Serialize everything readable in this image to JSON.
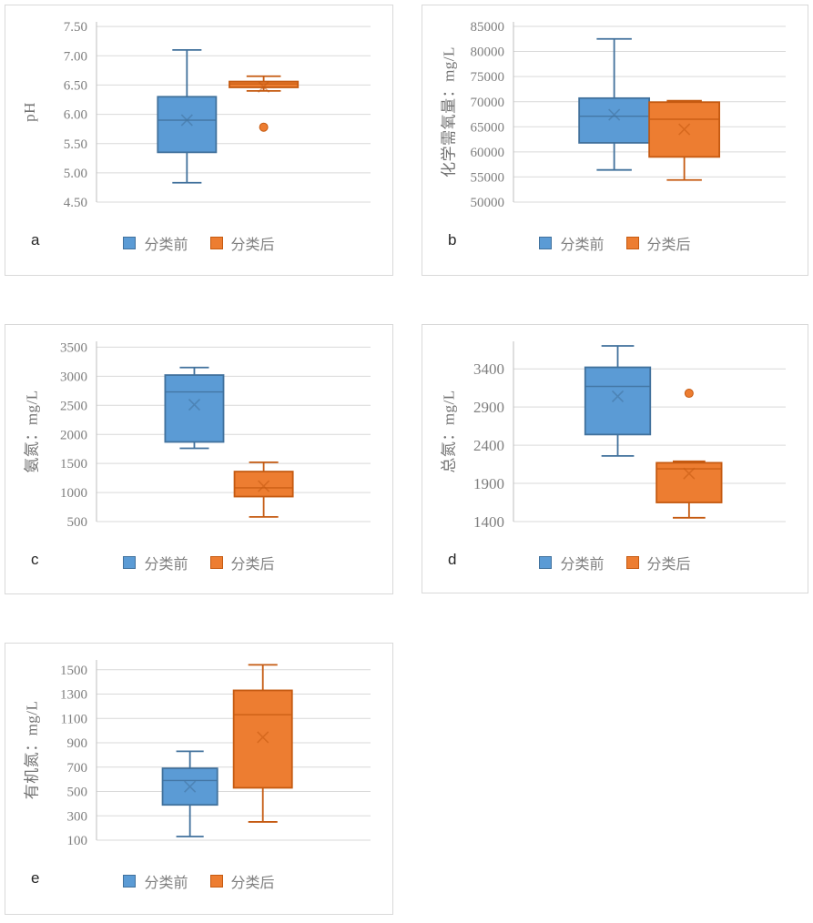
{
  "colors": {
    "blue_fill": "#5B9BD5",
    "blue_stroke": "#41719C",
    "orange_fill": "#ED7D31",
    "orange_stroke": "#C55A11",
    "gridline": "#D9D9D9",
    "axis_line": "#BFBFBF",
    "tick_text": "#7F7F7F",
    "axis_title_text": "#737373",
    "legend_text": "#7F7F7F",
    "panel_letter_text": "#262626",
    "panel_border": "#D9D9D9"
  },
  "legend": {
    "items": [
      {
        "label": "分类前",
        "color": "blue"
      },
      {
        "label": "分类后",
        "color": "orange"
      }
    ]
  },
  "chart_data": [
    {
      "panel_label": "a",
      "type": "box",
      "ylabel": "pH",
      "ylim": [
        4.5,
        7.58
      ],
      "tick_font_px": 15,
      "yticks": [
        {
          "value": 7.5,
          "label": "7.50"
        },
        {
          "value": 7.0,
          "label": "7.00"
        },
        {
          "value": 6.5,
          "label": "6.50"
        },
        {
          "value": 6.0,
          "label": "6.00"
        },
        {
          "value": 5.5,
          "label": "5.50"
        },
        {
          "value": 5.0,
          "label": "5.00"
        },
        {
          "value": 4.5,
          "label": "4.50"
        }
      ],
      "series": [
        {
          "name": "分类前",
          "color": "blue",
          "x_frac": 0.33,
          "width_frac": 0.213,
          "whisker_low": 4.83,
          "q1": 5.35,
          "median": 5.9,
          "mean": 5.9,
          "q3": 6.3,
          "whisker_high": 7.1,
          "outliers": []
        },
        {
          "name": "分类后",
          "color": "orange",
          "x_frac": 0.61,
          "width_frac": 0.25,
          "whisker_low": 6.4,
          "q1": 6.46,
          "median": 6.52,
          "mean": 6.47,
          "q3": 6.56,
          "whisker_high": 6.65,
          "outliers": [
            5.78
          ]
        }
      ]
    },
    {
      "panel_label": "b",
      "type": "box",
      "ylabel": "化学需氧量：mg/L",
      "ylim": [
        50000,
        85900
      ],
      "tick_font_px": 15,
      "yticks": [
        {
          "value": 85000,
          "label": "85000"
        },
        {
          "value": 80000,
          "label": "80000"
        },
        {
          "value": 75000,
          "label": "75000"
        },
        {
          "value": 70000,
          "label": "70000"
        },
        {
          "value": 65000,
          "label": "65000"
        },
        {
          "value": 60000,
          "label": "60000"
        },
        {
          "value": 55000,
          "label": "55000"
        },
        {
          "value": 50000,
          "label": "50000"
        }
      ],
      "series": [
        {
          "name": "分类前",
          "color": "blue",
          "x_frac": 0.37,
          "width_frac": 0.2575,
          "whisker_low": 56400,
          "q1": 61800,
          "median": 67100,
          "mean": 67400,
          "q3": 70700,
          "whisker_high": 82500,
          "outliers": []
        },
        {
          "name": "分类后",
          "color": "orange",
          "x_frac": 0.6275,
          "width_frac": 0.2575,
          "whisker_low": 54400,
          "q1": 59000,
          "median": 66500,
          "mean": 64500,
          "q3": 69900,
          "whisker_high": 70200,
          "outliers": []
        }
      ]
    },
    {
      "panel_label": "c",
      "type": "box",
      "ylabel": "氨氮：mg/L",
      "ylim": [
        500,
        3600
      ],
      "tick_font_px": 15,
      "yticks": [
        {
          "value": 3500,
          "label": "3500"
        },
        {
          "value": 3000,
          "label": "3000"
        },
        {
          "value": 2500,
          "label": "2500"
        },
        {
          "value": 2000,
          "label": "2000"
        },
        {
          "value": 1500,
          "label": "1500"
        },
        {
          "value": 1000,
          "label": "1000"
        },
        {
          "value": 500,
          "label": "500"
        }
      ],
      "series": [
        {
          "name": "分类前",
          "color": "blue",
          "x_frac": 0.357,
          "width_frac": 0.213,
          "whisker_low": 1760,
          "q1": 1870,
          "median": 2730,
          "mean": 2510,
          "q3": 3020,
          "whisker_high": 3150,
          "outliers": []
        },
        {
          "name": "分类后",
          "color": "orange",
          "x_frac": 0.61,
          "width_frac": 0.213,
          "whisker_low": 580,
          "q1": 930,
          "median": 1080,
          "mean": 1110,
          "q3": 1360,
          "whisker_high": 1520,
          "outliers": []
        }
      ]
    },
    {
      "panel_label": "d",
      "type": "box",
      "ylabel": "总氮：mg/L",
      "ylim": [
        1400,
        3760
      ],
      "tick_font_px": 17,
      "yticks": [
        {
          "value": 3400,
          "label": "3400"
        },
        {
          "value": 2900,
          "label": "2900"
        },
        {
          "value": 2400,
          "label": "2400"
        },
        {
          "value": 1900,
          "label": "1900"
        },
        {
          "value": 1400,
          "label": "1400"
        }
      ],
      "series": [
        {
          "name": "分类前",
          "color": "blue",
          "x_frac": 0.383,
          "width_frac": 0.239,
          "whisker_low": 2260,
          "q1": 2540,
          "median": 3170,
          "mean": 3040,
          "q3": 3420,
          "whisker_high": 3700,
          "outliers": []
        },
        {
          "name": "分类后",
          "color": "orange",
          "x_frac": 0.645,
          "width_frac": 0.239,
          "whisker_low": 1450,
          "q1": 1650,
          "median": 2090,
          "mean": 2030,
          "q3": 2170,
          "whisker_high": 2190,
          "outliers": [
            3080
          ]
        }
      ]
    },
    {
      "panel_label": "e",
      "type": "box",
      "ylabel": "有机氮：mg/L",
      "ylim": [
        100,
        1580
      ],
      "tick_font_px": 15,
      "yticks": [
        {
          "value": 1500,
          "label": "1500"
        },
        {
          "value": 1300,
          "label": "1300"
        },
        {
          "value": 1100,
          "label": "1100"
        },
        {
          "value": 900,
          "label": "900"
        },
        {
          "value": 700,
          "label": "700"
        },
        {
          "value": 500,
          "label": "500"
        },
        {
          "value": 300,
          "label": "300"
        },
        {
          "value": 100,
          "label": "100"
        }
      ],
      "series": [
        {
          "name": "分类前",
          "color": "blue",
          "x_frac": 0.341,
          "width_frac": 0.2,
          "whisker_low": 130,
          "q1": 390,
          "median": 590,
          "mean": 540,
          "q3": 690,
          "whisker_high": 830,
          "outliers": []
        },
        {
          "name": "分类后",
          "color": "orange",
          "x_frac": 0.607,
          "width_frac": 0.213,
          "whisker_low": 250,
          "q1": 530,
          "median": 1130,
          "mean": 945,
          "q3": 1330,
          "whisker_high": 1540,
          "outliers": []
        }
      ]
    }
  ]
}
